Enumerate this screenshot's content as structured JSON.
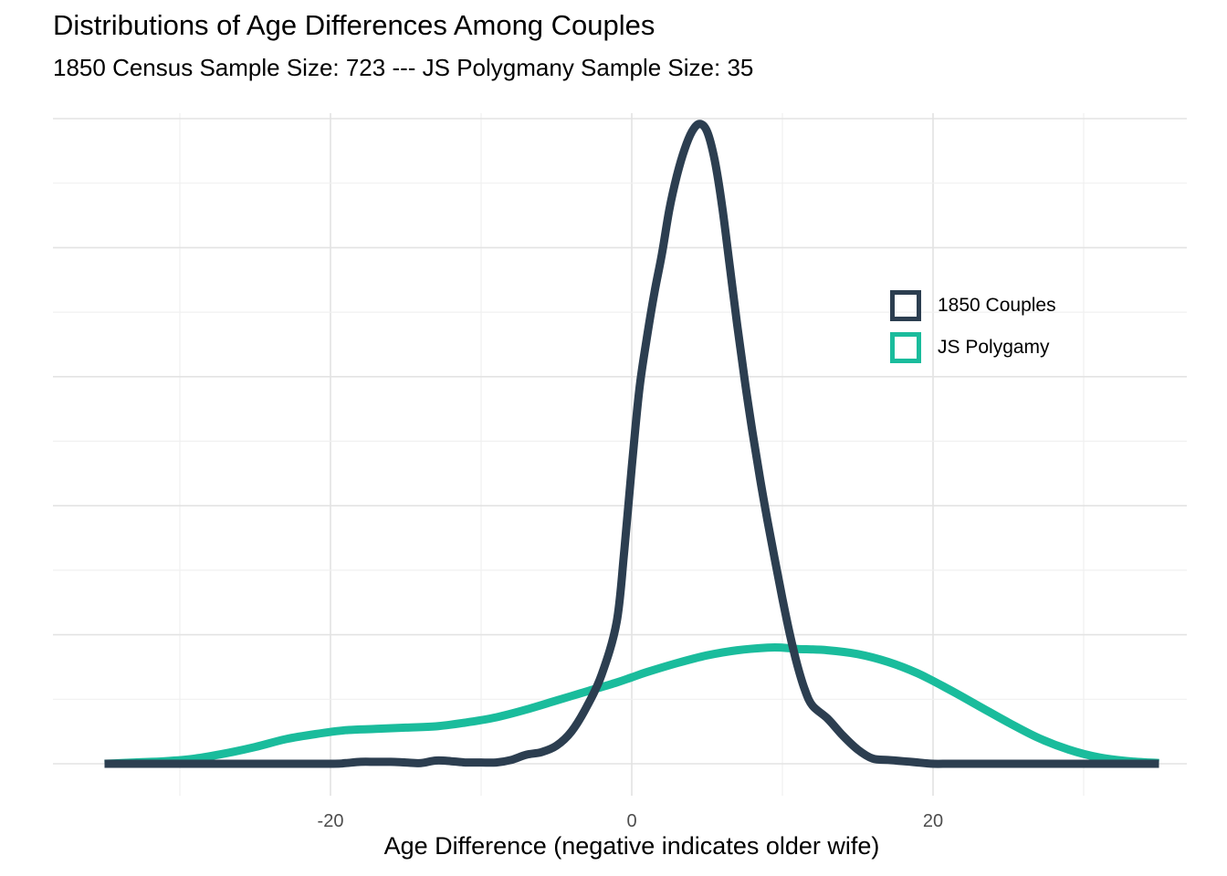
{
  "chart_data": {
    "type": "line",
    "title": "Distributions of Age Differences Among Couples",
    "subtitle": "1850 Census Sample Size: 723 --- JS Polygmany Sample Size: 35",
    "xlabel": "Age Difference (negative indicates older wife)",
    "ylabel": "",
    "xlim": [
      -38,
      37
    ],
    "x_ticks": [
      -20,
      0,
      20
    ],
    "x_tick_labels": [
      "-20",
      "0",
      "20"
    ],
    "y_tick_labels": [],
    "grid": true,
    "legend_position": "right",
    "series": [
      {
        "name": "1850 Couples",
        "color": "#2c3e50",
        "x": [
          -35,
          -30,
          -25,
          -20,
          -19,
          -18,
          -17,
          -16,
          -15,
          -14,
          -13,
          -12,
          -11,
          -10,
          -9,
          -8,
          -7,
          -6,
          -5,
          -4,
          -3,
          -2,
          -1,
          -0.5,
          0,
          0.5,
          1,
          1.5,
          2,
          2.5,
          3,
          3.5,
          4,
          4.5,
          5,
          5.5,
          6,
          6.5,
          7,
          7.5,
          8,
          8.5,
          9,
          9.5,
          10,
          10.5,
          11,
          11.5,
          12,
          13,
          14,
          15,
          16,
          17,
          18,
          19,
          20,
          21,
          22,
          25,
          30,
          35
        ],
        "y": [
          0,
          0,
          0,
          0,
          0.0005,
          0.0015,
          0.0015,
          0.0015,
          0.001,
          0.0005,
          0.0025,
          0.002,
          0.001,
          0.001,
          0.001,
          0.003,
          0.007,
          0.009,
          0.014,
          0.025,
          0.044,
          0.069,
          0.11,
          0.165,
          0.23,
          0.29,
          0.33,
          0.365,
          0.395,
          0.43,
          0.456,
          0.476,
          0.49,
          0.496,
          0.49,
          0.468,
          0.432,
          0.386,
          0.34,
          0.297,
          0.258,
          0.222,
          0.189,
          0.158,
          0.128,
          0.1,
          0.076,
          0.057,
          0.045,
          0.035,
          0.022,
          0.011,
          0.004,
          0.003,
          0.002,
          0.001,
          0,
          0,
          0,
          0,
          0,
          0
        ]
      },
      {
        "name": "JS Polygamy",
        "color": "#1abc9c",
        "x": [
          -35,
          -33,
          -31,
          -29,
          -27,
          -25,
          -23,
          -21,
          -19,
          -17,
          -15,
          -13,
          -11,
          -9,
          -7,
          -5,
          -3,
          -1,
          0,
          1,
          3,
          5,
          7,
          9,
          10,
          11,
          13,
          15,
          17,
          19,
          21,
          23,
          25,
          27,
          29,
          31,
          33,
          35
        ],
        "y": [
          0,
          0.001,
          0.002,
          0.004,
          0.008,
          0.013,
          0.019,
          0.023,
          0.026,
          0.027,
          0.028,
          0.029,
          0.032,
          0.036,
          0.042,
          0.049,
          0.056,
          0.063,
          0.067,
          0.071,
          0.078,
          0.084,
          0.088,
          0.09,
          0.09,
          0.089,
          0.088,
          0.085,
          0.079,
          0.07,
          0.058,
          0.045,
          0.032,
          0.02,
          0.011,
          0.005,
          0.002,
          0.0005
        ]
      }
    ]
  }
}
